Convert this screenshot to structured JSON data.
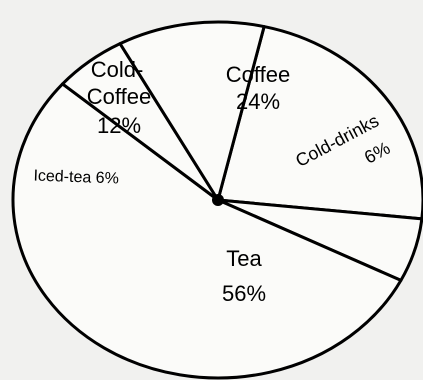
{
  "chart_data": {
    "type": "pie",
    "slices": [
      {
        "label": "Coffee",
        "value": 24,
        "value_label": "24%"
      },
      {
        "label": "Cold-drinks",
        "value": 6,
        "value_label": "6%"
      },
      {
        "label": "Tea",
        "value": 56,
        "value_label": "56%"
      },
      {
        "label": "Iced-tea",
        "value": 6,
        "value_label": "6%"
      },
      {
        "label": "Cold-Coffee",
        "value": 12,
        "value_label": "12%"
      }
    ],
    "unit": "%",
    "legend": "none",
    "colors": {
      "fill": "#fbfbf9",
      "stroke": "#000000",
      "background": "#f1f1ef"
    }
  }
}
